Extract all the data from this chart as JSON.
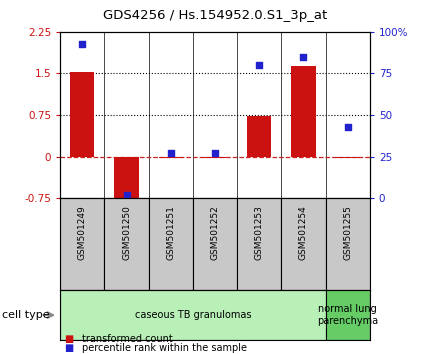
{
  "title": "GDS4256 / Hs.154952.0.S1_3p_at",
  "samples": [
    "GSM501249",
    "GSM501250",
    "GSM501251",
    "GSM501252",
    "GSM501253",
    "GSM501254",
    "GSM501255"
  ],
  "transformed_counts": [
    1.52,
    -0.85,
    -0.02,
    -0.02,
    0.73,
    1.63,
    -0.02
  ],
  "percentile_ranks": [
    93,
    2,
    27,
    27,
    80,
    85,
    43
  ],
  "ylim_left": [
    -0.75,
    2.25
  ],
  "ylim_right": [
    0,
    100
  ],
  "yticks_left": [
    -0.75,
    0,
    0.75,
    1.5,
    2.25
  ],
  "ytick_labels_left": [
    "-0.75",
    "0",
    "0.75",
    "1.5",
    "2.25"
  ],
  "yticks_right": [
    0,
    25,
    50,
    75,
    100
  ],
  "ytick_labels_right": [
    "0",
    "25",
    "50",
    "75",
    "100%"
  ],
  "hlines": [
    0.75,
    1.5
  ],
  "hline_zero_color": "#cc2222",
  "hline_zero_style": "--",
  "hline_dotted_color": "black",
  "hline_dotted_style": ":",
  "bar_color": "#cc1111",
  "scatter_color": "#2222cc",
  "bar_width": 0.55,
  "cell_type_groups": [
    {
      "label": "caseous TB granulomas",
      "samples": [
        0,
        1,
        2,
        3,
        4,
        5
      ],
      "color": "#b8f0b8"
    },
    {
      "label": "normal lung\nparenchyma",
      "samples": [
        6
      ],
      "color": "#66cc66"
    }
  ],
  "legend_bar_label": "transformed count",
  "legend_scatter_label": "percentile rank within the sample",
  "cell_type_label": "cell type",
  "bg_color": "#ffffff",
  "tick_label_color_left": "#cc1111",
  "tick_label_color_right": "#2222cc",
  "sample_box_color": "#c8c8c8",
  "sample_box_edge": "#888888"
}
